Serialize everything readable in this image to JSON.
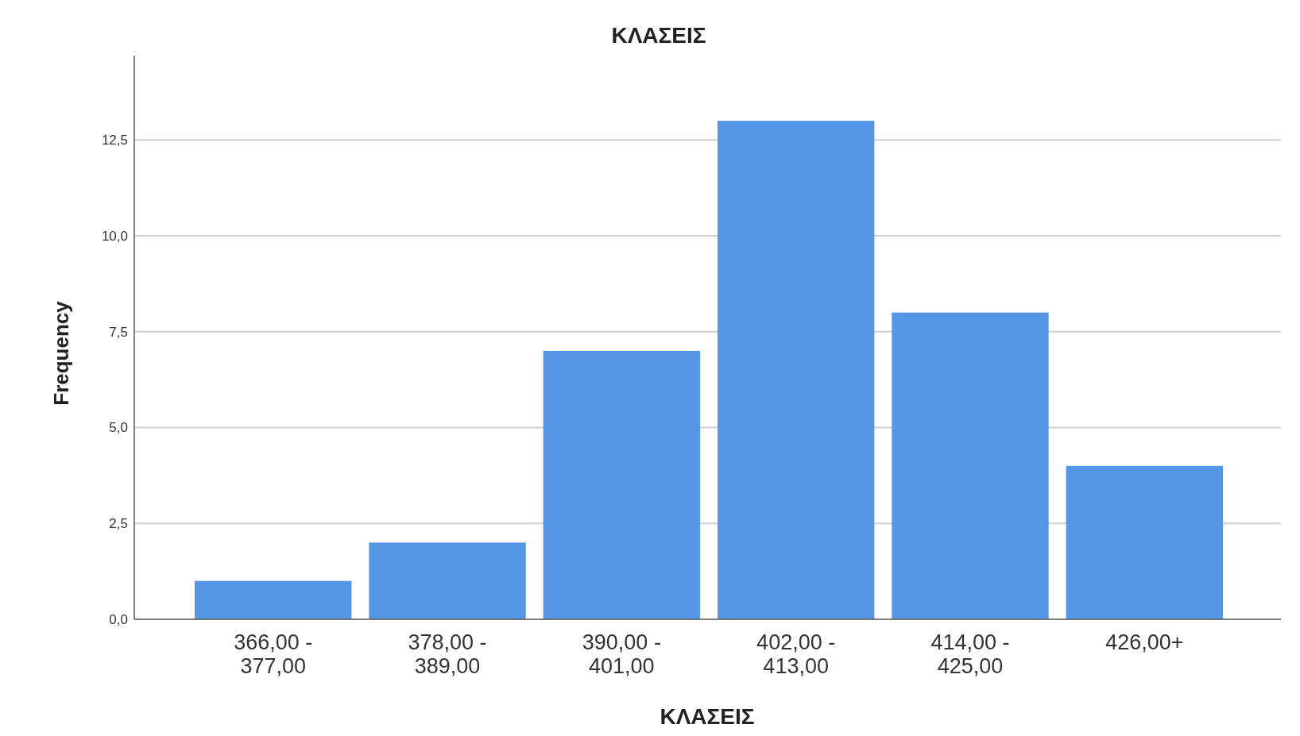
{
  "chart_data": {
    "type": "bar",
    "title": "ΚΛΑΣΕΙΣ",
    "xlabel": "ΚΛΑΣΕΙΣ",
    "ylabel": "Frequency",
    "categories": [
      "366,00 - 377,00",
      "378,00 - 389,00",
      "390,00 - 401,00",
      "402,00 - 413,00",
      "414,00 - 425,00",
      "426,00+"
    ],
    "values": [
      1,
      2,
      7,
      13,
      8,
      4
    ],
    "color": "#5596e6",
    "ylim": [
      0,
      14.7
    ],
    "yticks": [
      {
        "value": 0,
        "label": "0,0"
      },
      {
        "value": 2.5,
        "label": "2,5"
      },
      {
        "value": 5,
        "label": "5,0"
      },
      {
        "value": 7.5,
        "label": "7,5"
      },
      {
        "value": 10,
        "label": "10,0"
      },
      {
        "value": 12.5,
        "label": "12,5"
      }
    ],
    "grid": "y"
  }
}
